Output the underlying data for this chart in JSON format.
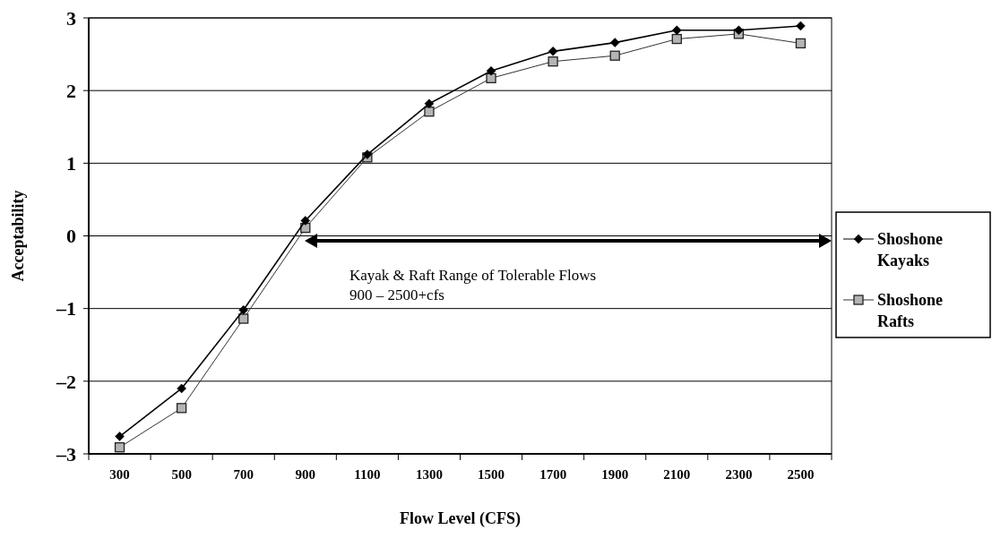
{
  "chart_data": {
    "type": "line",
    "xlabel": "Flow Level (CFS)",
    "ylabel": "Acceptability",
    "categories": [
      "300",
      "500",
      "700",
      "900",
      "1100",
      "1300",
      "1500",
      "1700",
      "1900",
      "2100",
      "2300",
      "2500"
    ],
    "series": [
      {
        "name": "Shoshone Kayaks",
        "color": "#000000",
        "marker": "diamond",
        "values": [
          -2.76,
          -2.1,
          -1.02,
          0.21,
          1.12,
          1.82,
          2.27,
          2.54,
          2.66,
          2.83,
          2.83,
          2.89
        ]
      },
      {
        "name": "Shoshone Rafts",
        "color": "#b4b4b4",
        "marker": "square",
        "values": [
          -2.91,
          -2.37,
          -1.14,
          0.11,
          1.08,
          1.71,
          2.17,
          2.4,
          2.48,
          2.71,
          2.78,
          2.65
        ]
      }
    ],
    "ylim": [
      -3,
      3
    ],
    "yticks": [
      {
        "value": -3,
        "label": "–3"
      },
      {
        "value": -2,
        "label": "–2"
      },
      {
        "value": -1,
        "label": "–1"
      },
      0,
      1,
      2,
      3
    ],
    "grid": "y",
    "legend": "right",
    "line_style": "solid",
    "annotations": [
      "Kayak & Raft Range of Tolerable Flows\n900 – 2500+cfs"
    ]
  }
}
